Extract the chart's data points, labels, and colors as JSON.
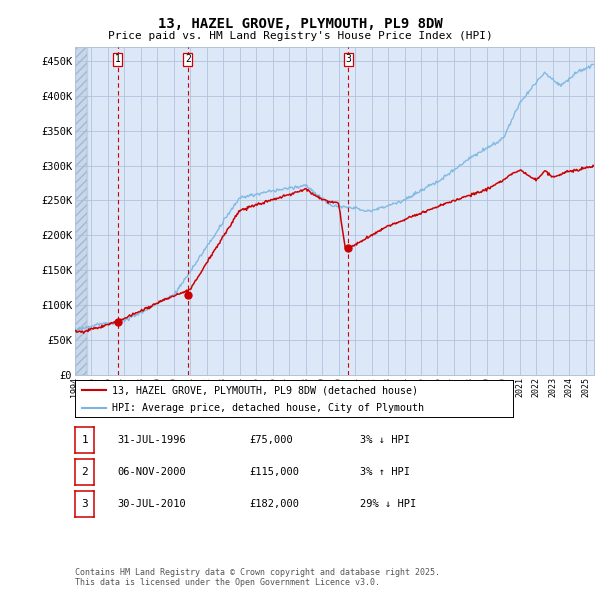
{
  "title": "13, HAZEL GROVE, PLYMOUTH, PL9 8DW",
  "subtitle": "Price paid vs. HM Land Registry's House Price Index (HPI)",
  "ylim": [
    0,
    470000
  ],
  "yticks": [
    0,
    50000,
    100000,
    150000,
    200000,
    250000,
    300000,
    350000,
    400000,
    450000
  ],
  "ytick_labels": [
    "£0",
    "£50K",
    "£100K",
    "£150K",
    "£200K",
    "£250K",
    "£300K",
    "£350K",
    "£400K",
    "£450K"
  ],
  "plot_bg": "#dce8f8",
  "hatch_bg": "#c8d8ec",
  "grid_color": "#b0c4dc",
  "red_color": "#cc0000",
  "blue_color": "#7ab4e0",
  "sale_markers": [
    {
      "label": "1",
      "date_num": 1996.58,
      "price": 75000
    },
    {
      "label": "2",
      "date_num": 2000.85,
      "price": 115000
    },
    {
      "label": "3",
      "date_num": 2010.58,
      "price": 182000
    }
  ],
  "legend_line1": "13, HAZEL GROVE, PLYMOUTH, PL9 8DW (detached house)",
  "legend_line2": "HPI: Average price, detached house, City of Plymouth",
  "table_entries": [
    {
      "num": "1",
      "date": "31-JUL-1996",
      "price": "£75,000",
      "hpi": "3% ↓ HPI"
    },
    {
      "num": "2",
      "date": "06-NOV-2000",
      "price": "£115,000",
      "hpi": "3% ↑ HPI"
    },
    {
      "num": "3",
      "date": "30-JUL-2010",
      "price": "£182,000",
      "hpi": "29% ↓ HPI"
    }
  ],
  "footer": "Contains HM Land Registry data © Crown copyright and database right 2025.\nThis data is licensed under the Open Government Licence v3.0.",
  "xmin": 1994.0,
  "xmax": 2025.5
}
